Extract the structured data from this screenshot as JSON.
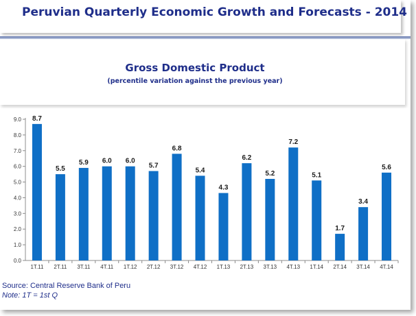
{
  "header": {
    "title": "Peruvian Quarterly Economic Growth and Forecasts - 2014"
  },
  "chart_data": {
    "type": "bar",
    "title": "Gross Domestic Product",
    "subtitle": "(percentile variation against the previous year)",
    "categories": [
      "1T.11",
      "2T.11",
      "3T.11",
      "4T.11",
      "1T.12",
      "2T.12",
      "3T.12",
      "4T.12",
      "1T.13",
      "2T.13",
      "3T.13",
      "4T.13",
      "1T.14",
      "2T.14",
      "3T.14",
      "4T.14"
    ],
    "values": [
      8.7,
      5.5,
      5.9,
      6.0,
      6.0,
      5.7,
      6.8,
      5.4,
      4.3,
      6.2,
      5.2,
      7.2,
      5.1,
      1.7,
      3.4,
      5.6
    ],
    "data_labels": [
      "8.7",
      "5.5",
      "5.9",
      "6.0",
      "6.0",
      "5.7",
      "6.8",
      "5.4",
      "4.3",
      "6.2",
      "5.2",
      "7.2",
      "5.1",
      "1.7",
      "3.4",
      "5.6"
    ],
    "y_ticks": [
      "0.0",
      "1.0",
      "2.0",
      "3.0",
      "4.0",
      "5.0",
      "6.0",
      "7.0",
      "8.0",
      "9.0"
    ],
    "ylim": [
      0,
      9
    ],
    "xlabel": "",
    "ylabel": "",
    "grid": false,
    "legend": "none",
    "bar_color": "#0f6fc6"
  },
  "footer": {
    "source": "Source: Central Reserve Bank of Peru",
    "note": "Note: 1T = 1st Q"
  }
}
